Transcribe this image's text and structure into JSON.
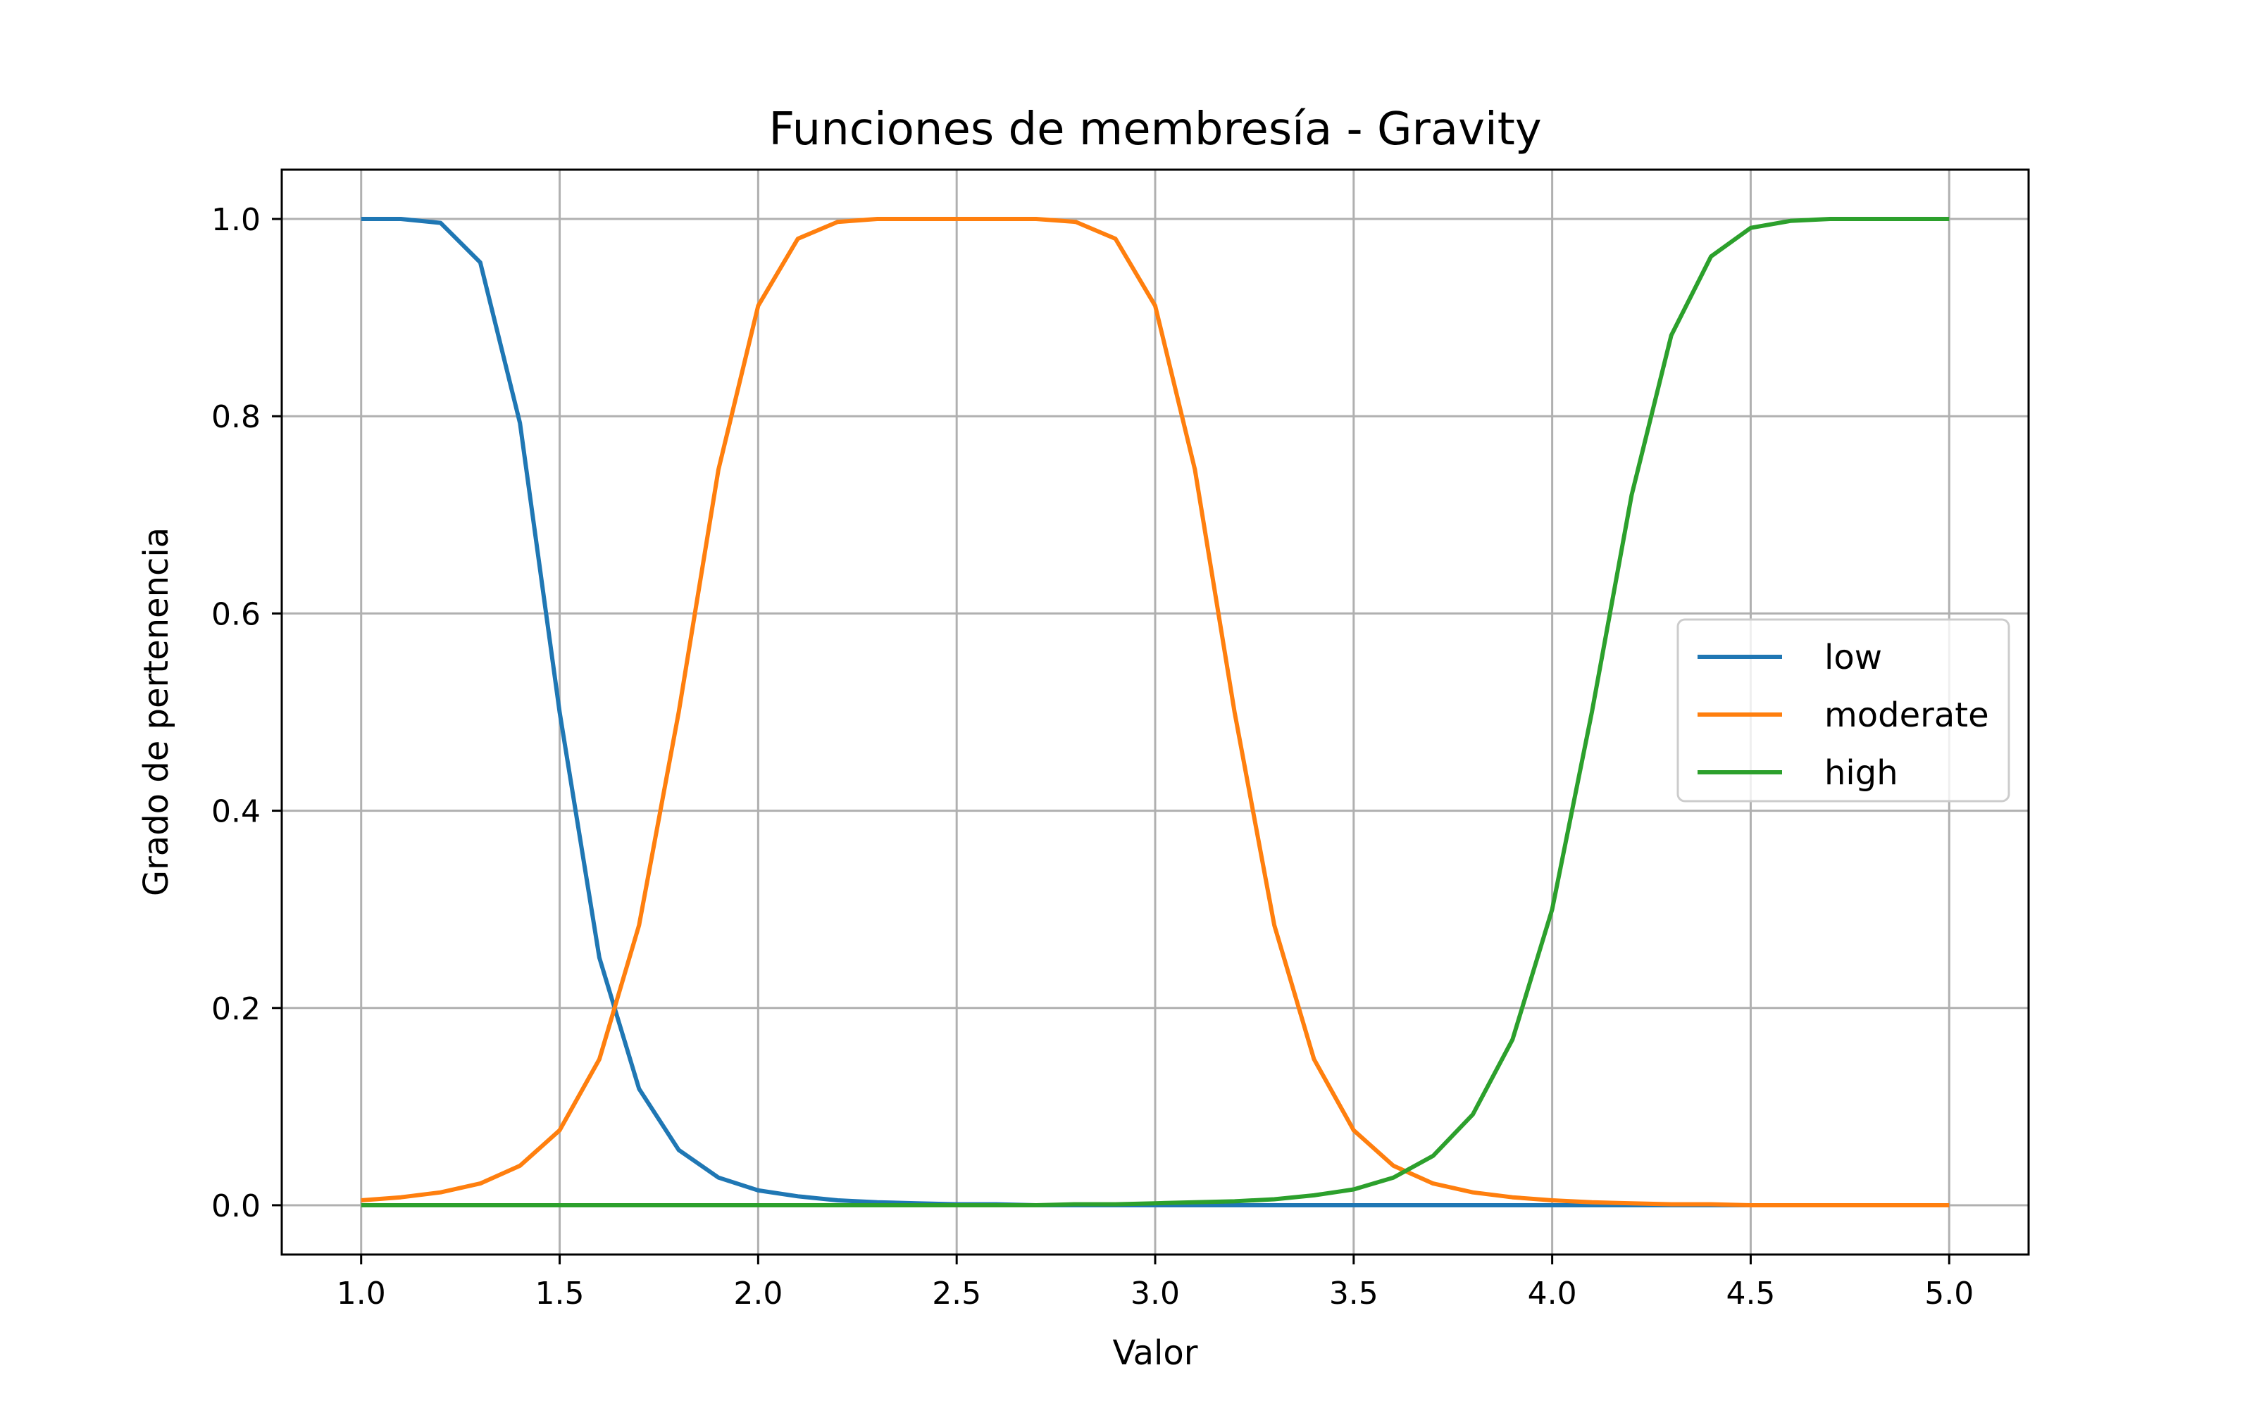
{
  "chart_data": {
    "type": "line",
    "title": "Funciones de membresía - Gravity",
    "xlabel": "Valor",
    "ylabel": "Grado de pertenencia",
    "xlim": [
      0.8,
      5.2
    ],
    "ylim": [
      -0.05,
      1.05
    ],
    "xticks": [
      "1.0",
      "1.5",
      "2.0",
      "2.5",
      "3.0",
      "3.5",
      "4.0",
      "4.5",
      "5.0"
    ],
    "yticks": [
      "0.0",
      "0.2",
      "0.4",
      "0.6",
      "0.8",
      "1.0"
    ],
    "grid": true,
    "legend_position": "center-right",
    "x": [
      1.0,
      1.1,
      1.2,
      1.3,
      1.4,
      1.5,
      1.6,
      1.7,
      1.8,
      1.9,
      2.0,
      2.1,
      2.2,
      2.3,
      2.4,
      2.5,
      2.6,
      2.7,
      2.8,
      2.9,
      3.0,
      3.1,
      3.2,
      3.3,
      3.4,
      3.5,
      3.6,
      3.7,
      3.8,
      3.9,
      4.0,
      4.1,
      4.2,
      4.3,
      4.4,
      4.5,
      4.6,
      4.7,
      4.8,
      4.9,
      5.0
    ],
    "series": [
      {
        "name": "low",
        "color": "#1f77b4",
        "values": [
          1.0,
          1.0,
          0.996,
          0.956,
          0.793,
          0.5,
          0.251,
          0.118,
          0.056,
          0.028,
          0.015,
          0.009,
          0.005,
          0.003,
          0.002,
          0.001,
          0.001,
          0.0,
          0.0,
          0.0,
          0.0,
          0.0,
          0.0,
          0.0,
          0.0,
          0.0,
          0.0,
          0.0,
          0.0,
          0.0,
          0.0,
          0.0,
          0.0,
          0.0,
          0.0,
          0.0,
          0.0,
          0.0,
          0.0,
          0.0,
          0.0
        ]
      },
      {
        "name": "moderate",
        "color": "#ff7f0e",
        "values": [
          0.005,
          0.008,
          0.013,
          0.022,
          0.04,
          0.076,
          0.148,
          0.284,
          0.5,
          0.746,
          0.912,
          0.98,
          0.997,
          1.0,
          1.0,
          1.0,
          1.0,
          1.0,
          0.997,
          0.98,
          0.912,
          0.746,
          0.5,
          0.284,
          0.148,
          0.076,
          0.04,
          0.022,
          0.013,
          0.008,
          0.005,
          0.003,
          0.002,
          0.001,
          0.001,
          0.0,
          0.0,
          0.0,
          0.0,
          0.0,
          0.0
        ]
      },
      {
        "name": "high",
        "color": "#2ca02c",
        "values": [
          0.0,
          0.0,
          0.0,
          0.0,
          0.0,
          0.0,
          0.0,
          0.0,
          0.0,
          0.0,
          0.0,
          0.0,
          0.0,
          0.0,
          0.0,
          0.0,
          0.0,
          0.0,
          0.001,
          0.001,
          0.002,
          0.003,
          0.004,
          0.006,
          0.01,
          0.016,
          0.028,
          0.05,
          0.092,
          0.168,
          0.3,
          0.5,
          0.72,
          0.882,
          0.962,
          0.991,
          0.998,
          1.0,
          1.0,
          1.0,
          1.0
        ]
      }
    ]
  }
}
